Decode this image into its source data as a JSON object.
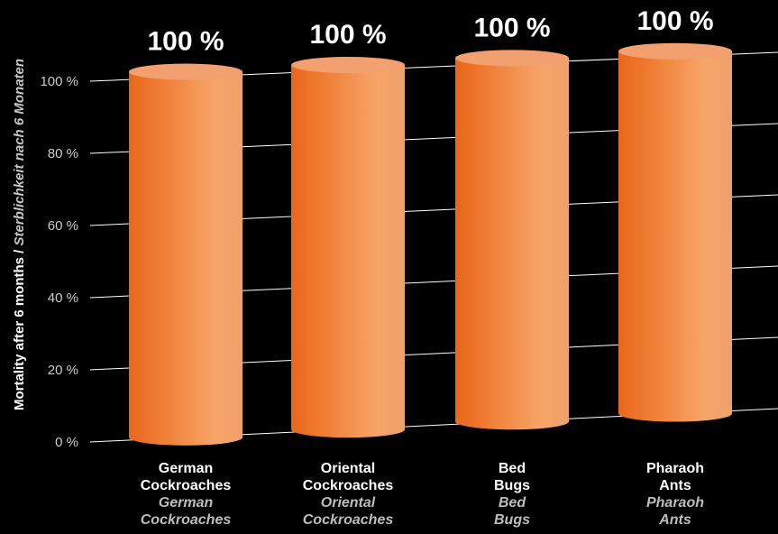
{
  "chart_data": {
    "type": "bar",
    "ylabel_en": "Mortality after 6 months / ",
    "ylabel_de": "Sterblichkeit nach 6 Monaten",
    "yticks": [
      "0 %",
      "20 %",
      "40 %",
      "60 %",
      "80 %",
      "100 %"
    ],
    "ylim": [
      0,
      100
    ],
    "grid": true,
    "categories": [
      {
        "en": [
          "German",
          "Cockroaches"
        ],
        "de": [
          "German",
          "Cockroaches"
        ]
      },
      {
        "en": [
          "Oriental",
          "Cockroaches"
        ],
        "de": [
          "Oriental",
          "Cockroaches"
        ]
      },
      {
        "en": [
          "Bed",
          "Bugs"
        ],
        "de": [
          "Bed",
          "Bugs"
        ]
      },
      {
        "en": [
          "Pharaoh",
          "Ants"
        ],
        "de": [
          "Pharaoh",
          "Ants"
        ]
      }
    ],
    "values": [
      100,
      100,
      100,
      100
    ],
    "value_labels": [
      "100 %",
      "100 %",
      "100 %",
      "100 %"
    ]
  },
  "colors": {
    "background": "#000000",
    "bar_light": "#f6a66a",
    "bar_dark": "#e8671c",
    "bar_top": "#f2a070",
    "grid": "#ffffff",
    "tick_text": "#cccccc",
    "label_en": "#ffffff",
    "label_de": "#bdbdbd"
  }
}
